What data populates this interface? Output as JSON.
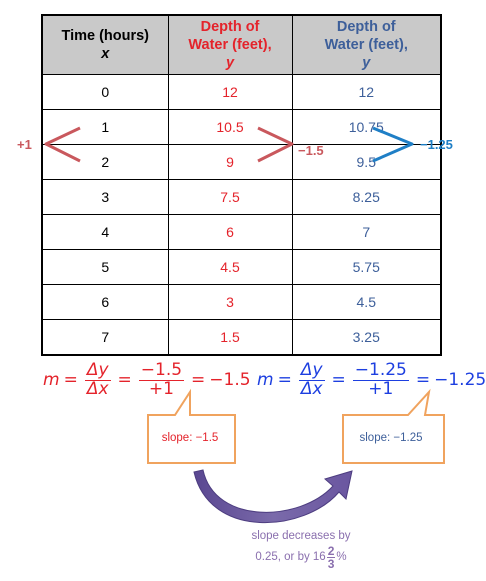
{
  "table": {
    "headers": [
      {
        "line1": "Time (hours)",
        "line2": "",
        "var": "x"
      },
      {
        "line1": "Depth of",
        "line2": "Water (feet),",
        "var": "y"
      },
      {
        "line1": "Depth of",
        "line2": "Water (feet),",
        "var": "y"
      }
    ],
    "rows": [
      [
        "0",
        "12",
        "12"
      ],
      [
        "1",
        "10.5",
        "10.75"
      ],
      [
        "2",
        "9",
        "9.5"
      ],
      [
        "3",
        "7.5",
        "8.25"
      ],
      [
        "4",
        "6",
        "7"
      ],
      [
        "5",
        "4.5",
        "5.75"
      ],
      [
        "6",
        "3",
        "4.5"
      ],
      [
        "7",
        "1.5",
        "3.25"
      ]
    ]
  },
  "annotations": {
    "plus_one": "+1",
    "red_change": "−1.5",
    "blue_change": "−1.25"
  },
  "equation_red": {
    "m": "m",
    "dy": "Δy",
    "dx": "Δx",
    "eq": "=",
    "num": "−1.5",
    "den": "+1",
    "result": "−1.5"
  },
  "equation_blue": {
    "m": "m",
    "dy": "Δy",
    "dx": "Δx",
    "eq": "=",
    "num": "−1.25",
    "den": "+1",
    "result": "−1.25"
  },
  "callouts": {
    "red": "slope: −1.5",
    "blue": "slope: −1.25"
  },
  "note": {
    "line1": "slope decreases by",
    "line2_prefix": "0.25, or by 16",
    "frac_num": "2",
    "frac_den": "3",
    "suffix": " %"
  },
  "colors": {
    "red": "#e4232b",
    "blue_text": "#3d5f9a",
    "blue_arrow": "#1f7fc6",
    "callout_border": "#f0a35e",
    "purple": "#8a6fae"
  }
}
